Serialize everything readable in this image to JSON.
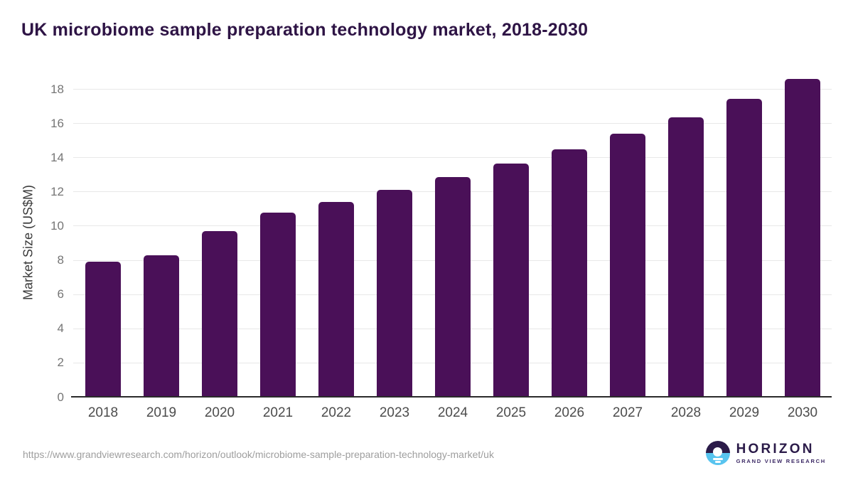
{
  "title": "UK microbiome sample preparation technology market, 2018-2030",
  "footer": {
    "source_url": "https://www.grandviewresearch.com/horizon/outlook/microbiome-sample-preparation-technology-market/uk",
    "logo": {
      "brand": "HORIZON",
      "tagline": "GRAND VIEW RESEARCH"
    }
  },
  "colors": {
    "bar": "#4a1058",
    "title_text": "#2e1445",
    "axis_line": "#2b2b2b",
    "gridline": "#e8e8e8",
    "y_tick_label": "#757575",
    "x_tick_label": "#4c4c4c",
    "y_axis_title": "#3a3a3a",
    "url_text": "#9e9e9e",
    "logo_dark": "#2b1b49",
    "logo_blue": "#58c4ef"
  },
  "chart_data": {
    "type": "bar",
    "title": "UK microbiome sample preparation technology market, 2018-2030",
    "categories": [
      "2018",
      "2019",
      "2020",
      "2021",
      "2022",
      "2023",
      "2024",
      "2025",
      "2026",
      "2027",
      "2028",
      "2029",
      "2030"
    ],
    "values": [
      7.9,
      8.27,
      9.69,
      10.77,
      11.39,
      12.1,
      12.85,
      13.64,
      14.47,
      15.38,
      16.34,
      17.42,
      18.59
    ],
    "xlabel": "",
    "ylabel": "Market Size (US$M)",
    "ylim": [
      0,
      19
    ],
    "yticks": [
      0,
      2,
      4,
      6,
      8,
      10,
      12,
      14,
      16,
      18
    ],
    "grid": true,
    "legend": false,
    "bar_color": "#4a1058"
  }
}
